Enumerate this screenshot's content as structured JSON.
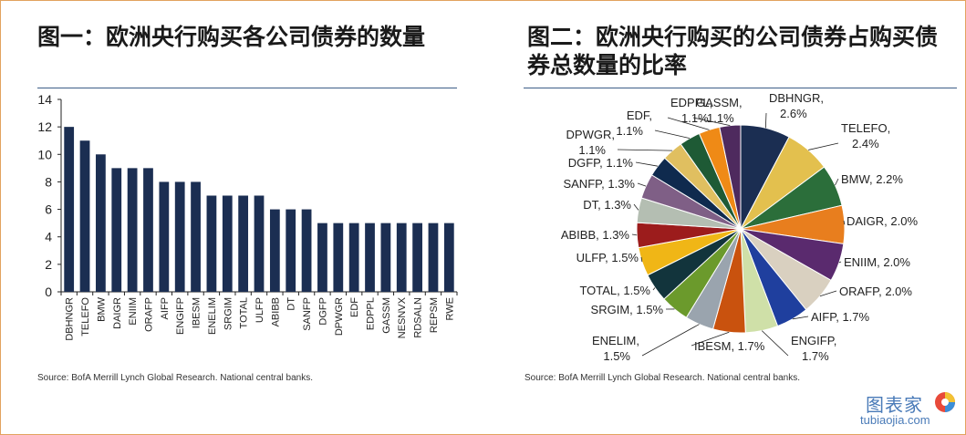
{
  "left_title": "图一：欧洲央行购买各公司债券的数量",
  "right_title": "图二：欧洲央行购买的公司债券占购买债券总数量的比率",
  "left_source": "Source: BofA Merrill Lynch Global Research. National central banks.",
  "right_source": "Source: BofA Merrill Lynch Global Research. National central banks.",
  "watermark": {
    "name": "图表家",
    "url": "tubiaojia.com"
  },
  "colors": {
    "bar": "#1b2e52",
    "axis": "#222222",
    "rule": "#3e5e88",
    "frame": "#e2a25e"
  },
  "chart_data": [
    {
      "type": "bar",
      "title": "图一：欧洲央行购买各公司债券的数量",
      "categories": [
        "DBHNGR",
        "TELEFO",
        "BMW",
        "DAIGR",
        "ENIIM",
        "ORAFP",
        "AIFP",
        "ENGIFP",
        "IBESM",
        "ENELIM",
        "SRGIM",
        "TOTAL",
        "ULFP",
        "ABIBB",
        "DT",
        "SANFP",
        "DGFP",
        "DPWGR",
        "EDF",
        "EDPPL",
        "GASSM",
        "NESNVX",
        "RDSALN",
        "REPSM",
        "RWE"
      ],
      "values": [
        12,
        11,
        10,
        9,
        9,
        9,
        8,
        8,
        8,
        7,
        7,
        7,
        7,
        6,
        6,
        6,
        5,
        5,
        5,
        5,
        5,
        5,
        5,
        5,
        5
      ],
      "ylim": [
        0,
        14
      ],
      "yticks": [
        0,
        2,
        4,
        6,
        8,
        10,
        12,
        14
      ],
      "xlabel": "",
      "ylabel": ""
    },
    {
      "type": "pie",
      "title": "图二：欧洲央行购买的公司债券占购买债券总数量的比率",
      "slices": [
        {
          "label": "DBHNGR",
          "text": "2.6%",
          "value": 2.6,
          "color": "#1b2e52"
        },
        {
          "label": "TELEFO",
          "text": "2.4%",
          "value": 2.4,
          "color": "#e3c04e"
        },
        {
          "label": "BMW",
          "text": "2.2%",
          "value": 2.2,
          "color": "#2b6e3a"
        },
        {
          "label": "DAIGR",
          "text": "2.0%",
          "value": 2.0,
          "color": "#e87e1e"
        },
        {
          "label": "ENIIM",
          "text": "2.0%",
          "value": 2.0,
          "color": "#5a2a6e"
        },
        {
          "label": "ORAFP",
          "text": "2.0%",
          "value": 2.0,
          "color": "#d9d0c0"
        },
        {
          "label": "AIFP",
          "text": "1.7%",
          "value": 1.7,
          "color": "#1f3f9e"
        },
        {
          "label": "ENGIFP",
          "text": "1.7%",
          "value": 1.7,
          "color": "#cfe0a8"
        },
        {
          "label": "IBESM",
          "text": "1.7%",
          "value": 1.7,
          "color": "#c9520e"
        },
        {
          "label": "ENELIM",
          "text": "1.5%",
          "value": 1.5,
          "color": "#9aa4ae"
        },
        {
          "label": "SRGIM",
          "text": "1.5%",
          "value": 1.5,
          "color": "#6b9a2c"
        },
        {
          "label": "TOTAL",
          "text": "1.5%",
          "value": 1.5,
          "color": "#12343c"
        },
        {
          "label": "ULFP",
          "text": "1.5%",
          "value": 1.5,
          "color": "#f0b616"
        },
        {
          "label": "ABIBB",
          "text": "1.3%",
          "value": 1.3,
          "color": "#9c1c1c"
        },
        {
          "label": "DT",
          "text": "1.3%",
          "value": 1.3,
          "color": "#b4beb2"
        },
        {
          "label": "SANFP",
          "text": "1.3%",
          "value": 1.3,
          "color": "#7f5f86"
        },
        {
          "label": "DGFP",
          "text": "1.1%",
          "value": 1.1,
          "color": "#0f2a4e"
        },
        {
          "label": "DPWGR",
          "text": "1.1%",
          "value": 1.1,
          "color": "#e0bf60"
        },
        {
          "label": "EDF",
          "text": "1.1%",
          "value": 1.1,
          "color": "#1e5a35"
        },
        {
          "label": "EDPPL",
          "text": "1.1%",
          "value": 1.1,
          "color": "#ef8a16"
        },
        {
          "label": "GASSM",
          "text": "1.1%",
          "value": 1.1,
          "color": "#4e2a5e"
        }
      ]
    }
  ]
}
